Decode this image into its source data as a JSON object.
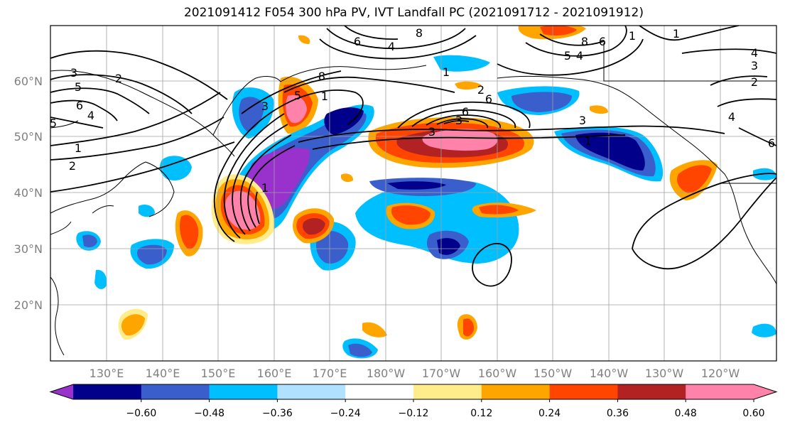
{
  "title": "2021091412 F054 300 hPa PV, IVT Landfall PC (2021091712 - 2021091912)",
  "map": {
    "lat_labels": [
      "60°N",
      "50°N",
      "40°N",
      "30°N",
      "20°N"
    ],
    "lon_labels": [
      "130°E",
      "140°E",
      "150°E",
      "160°E",
      "170°E",
      "180°W",
      "170°W",
      "160°W",
      "150°W",
      "140°W",
      "130°W",
      "120°W"
    ],
    "contour_labels": [
      "3",
      "2",
      "5",
      "6",
      "4",
      "5",
      "1",
      "2",
      "6",
      "8",
      "4",
      "8",
      "6",
      "4",
      "8",
      "5",
      "1",
      "1",
      "4",
      "3",
      "2",
      "4",
      "6",
      "2",
      "1",
      "3",
      "6",
      "1",
      "1",
      "3",
      "6",
      "5",
      "3",
      "1",
      "3"
    ]
  },
  "colorbar": {
    "ticks": [
      "−0.60",
      "−0.48",
      "−0.36",
      "−0.24",
      "−0.12",
      "0.12",
      "0.24",
      "0.36",
      "0.48",
      "0.60"
    ],
    "colors": [
      "#9932cc",
      "#00008b",
      "#3a5fcd",
      "#00bfff",
      "#b0e2ff",
      "#ffffff",
      "#ffec8b",
      "#ffa500",
      "#ff4500",
      "#b22222",
      "#ff82ab",
      "#ff82ab"
    ]
  },
  "colors": {
    "purple": "#9932cc",
    "navy": "#00008b",
    "royal": "#3a5fcd",
    "sky": "#00bfff",
    "pale": "#b0e2ff",
    "yellow": "#ffec8b",
    "orange": "#ffa500",
    "redorange": "#ff4500",
    "firebrick": "#b22222",
    "pink": "#ff82ab"
  }
}
